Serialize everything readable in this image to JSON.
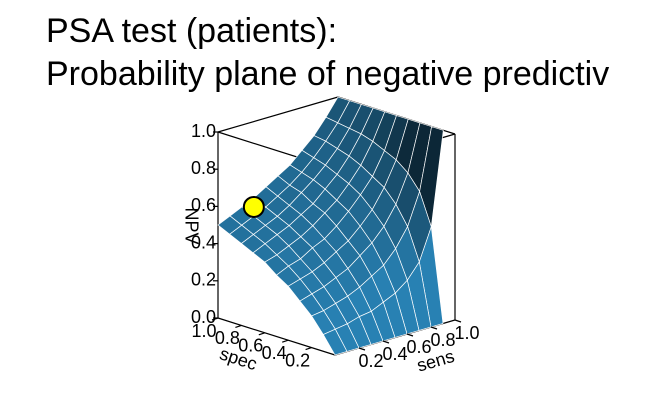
{
  "chart_data": {
    "type": "surface",
    "title": "PSA test (patients):",
    "subtitle": "Probability plane of negative predictiv",
    "x_label": "spec",
    "y_label": "sens",
    "z_label": "NPV",
    "x": [
      0,
      0.1,
      0.2,
      0.3,
      0.4,
      0.5,
      0.6,
      0.7,
      0.8,
      0.9,
      1
    ],
    "y": [
      0,
      0.1,
      0.2,
      0.3,
      0.4,
      0.5,
      0.6,
      0.7,
      0.8,
      0.9,
      1
    ],
    "z": [
      [
        0,
        0,
        0,
        0,
        0,
        0,
        0,
        0,
        0,
        0,
        null
      ],
      [
        0.09,
        0.1,
        0.11,
        0.13,
        0.14,
        0.17,
        0.2,
        0.25,
        0.33,
        0.5,
        1
      ],
      [
        0.17,
        0.18,
        0.2,
        0.22,
        0.25,
        0.29,
        0.33,
        0.4,
        0.5,
        0.67,
        1
      ],
      [
        0.23,
        0.25,
        0.27,
        0.3,
        0.33,
        0.38,
        0.43,
        0.5,
        0.6,
        0.75,
        1
      ],
      [
        0.29,
        0.31,
        0.33,
        0.36,
        0.4,
        0.44,
        0.5,
        0.57,
        0.67,
        0.8,
        1
      ],
      [
        0.33,
        0.36,
        0.38,
        0.42,
        0.45,
        0.5,
        0.56,
        0.63,
        0.71,
        0.83,
        1
      ],
      [
        0.38,
        0.4,
        0.43,
        0.46,
        0.5,
        0.55,
        0.6,
        0.67,
        0.75,
        0.86,
        1
      ],
      [
        0.41,
        0.44,
        0.47,
        0.5,
        0.54,
        0.58,
        0.64,
        0.7,
        0.78,
        0.88,
        1
      ],
      [
        0.44,
        0.47,
        0.5,
        0.53,
        0.57,
        0.62,
        0.67,
        0.73,
        0.8,
        0.89,
        1
      ],
      [
        0.47,
        0.5,
        0.53,
        0.56,
        0.6,
        0.64,
        0.69,
        0.75,
        0.82,
        0.9,
        1
      ],
      [
        0.5,
        0.53,
        0.56,
        0.59,
        0.63,
        0.67,
        0.71,
        0.77,
        0.83,
        0.91,
        1
      ]
    ],
    "color": "#23709c",
    "point": {
      "x": 0.95,
      "y": 0.25,
      "z": 0.56,
      "color": "#ffff00"
    },
    "xlim": [
      0,
      1
    ],
    "ylim": [
      0,
      1
    ],
    "zlim": [
      0,
      1
    ],
    "xticks": [
      {
        "value": 1,
        "label": "1.0"
      },
      0.8,
      0.6,
      0.4,
      0.2
    ],
    "yticks": [
      0.2,
      0.4,
      0.6,
      0.8,
      {
        "value": 1,
        "label": "1.0"
      }
    ],
    "zticks": [
      {
        "value": 0,
        "label": "0.0"
      },
      0.2,
      0.4,
      0.6,
      0.8,
      {
        "value": 1,
        "label": "1.0"
      }
    ]
  }
}
